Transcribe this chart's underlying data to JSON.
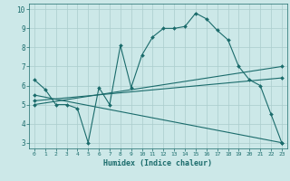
{
  "xlabel": "Humidex (Indice chaleur)",
  "xlim": [
    -0.5,
    23.5
  ],
  "ylim": [
    2.7,
    10.3
  ],
  "xticks": [
    0,
    1,
    2,
    3,
    4,
    5,
    6,
    7,
    8,
    9,
    10,
    11,
    12,
    13,
    14,
    15,
    16,
    17,
    18,
    19,
    20,
    21,
    22,
    23
  ],
  "yticks": [
    3,
    4,
    5,
    6,
    7,
    8,
    9,
    10
  ],
  "bg_color": "#cce8e8",
  "grid_color": "#aacccc",
  "line_color": "#1a6b6b",
  "line1_x": [
    0,
    1,
    2,
    3,
    4,
    5,
    6,
    7,
    8,
    9,
    10,
    11,
    12,
    13,
    14,
    15,
    16,
    17,
    18,
    19,
    20,
    21,
    22,
    23
  ],
  "line1_y": [
    6.3,
    5.8,
    5.0,
    5.0,
    4.8,
    3.0,
    5.9,
    5.0,
    8.1,
    5.9,
    7.6,
    8.55,
    9.0,
    9.0,
    9.1,
    9.8,
    9.5,
    8.9,
    8.4,
    7.0,
    6.3,
    6.0,
    4.5,
    3.0
  ],
  "line2_x": [
    0,
    23
  ],
  "line2_y": [
    5.0,
    7.0
  ],
  "line3_x": [
    0,
    23
  ],
  "line3_y": [
    5.2,
    6.4
  ],
  "line4_x": [
    0,
    23
  ],
  "line4_y": [
    5.5,
    3.0
  ]
}
